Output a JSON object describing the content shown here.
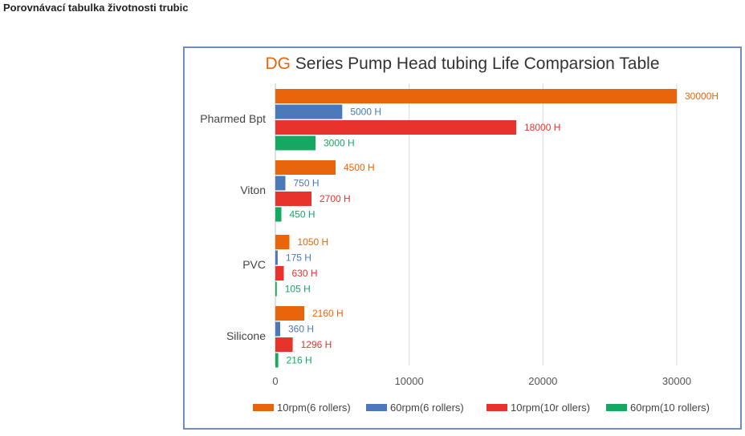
{
  "page": {
    "heading": "Porovnávací tabulka životnosti trubic"
  },
  "chart_data": {
    "type": "bar",
    "orientation": "horizontal",
    "title_prefix": "DG",
    "title_rest": " Series Pump Head tubing Life Comparsion Table",
    "categories": [
      "Pharmed Bpt",
      "Viton",
      "PVC",
      "Silicone"
    ],
    "series": [
      {
        "name": "10rpm(6 rollers)",
        "color": "#e8650a",
        "values": [
          30000,
          4500,
          1050,
          2160
        ],
        "labels": [
          "30000H",
          "4500 H",
          "1050 H",
          "2160 H"
        ]
      },
      {
        "name": "60rpm(6 rollers)",
        "color": "#4a78b8",
        "values": [
          5000,
          750,
          175,
          360
        ],
        "labels": [
          "5000 H",
          "750 H",
          "175 H",
          "360 H"
        ]
      },
      {
        "name": "10rpm(10r ollers)",
        "color": "#e8322c",
        "values": [
          18000,
          2700,
          630,
          1296
        ],
        "labels": [
          "18000 H",
          "2700 H",
          "630 H",
          "1296 H"
        ]
      },
      {
        "name": "60rpm(10 rollers)",
        "color": "#14a862",
        "values": [
          3000,
          450,
          105,
          216
        ],
        "labels": [
          "3000 H",
          "450 H",
          "105 H",
          "216 H"
        ]
      }
    ],
    "xlim": [
      0,
      33000
    ],
    "xticks": [
      0,
      10000,
      20000,
      30000
    ],
    "xtick_labels": [
      "0",
      "10000",
      "20000",
      "30000"
    ],
    "grid": true,
    "legend": "bottom",
    "title_accent": "#e8650a"
  }
}
